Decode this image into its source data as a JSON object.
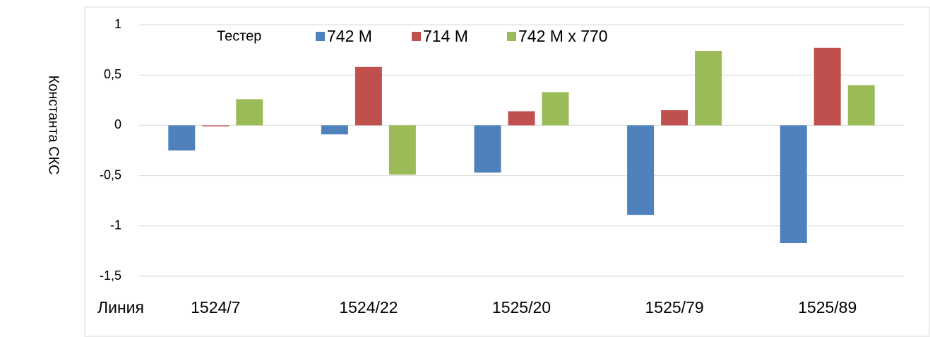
{
  "chart_data": {
    "type": "bar",
    "y_label": "Константа СКС",
    "x_label": "Линия",
    "legend_title": "Тестер",
    "categories": [
      "1524/7",
      "1524/22",
      "1525/20",
      "1525/79",
      "1525/89"
    ],
    "series": [
      {
        "name": "742 M",
        "color": "#4f81bd",
        "values": [
          -0.25,
          -0.09,
          -0.47,
          -0.89,
          -1.17
        ]
      },
      {
        "name": "714 M",
        "color": "#c0504d",
        "values": [
          -0.01,
          0.58,
          0.14,
          0.15,
          0.77
        ]
      },
      {
        "name": "742 M x 770",
        "color": "#9bbb59",
        "values": [
          0.26,
          -0.49,
          0.33,
          0.74,
          0.4
        ]
      }
    ],
    "ylim": [
      -1.5,
      1
    ],
    "yticks": [
      {
        "value": -1.5,
        "label": "-1,5"
      },
      -1,
      {
        "value": -0.5,
        "label": "-0,5"
      },
      0,
      {
        "value": 0.5,
        "label": "0,5"
      },
      1
    ],
    "grid": true,
    "legend": "top"
  }
}
